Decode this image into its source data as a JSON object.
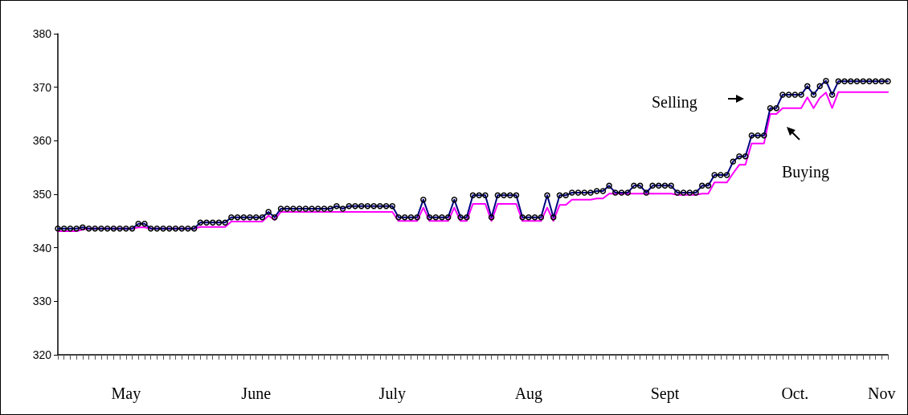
{
  "chart_data": {
    "type": "line",
    "categories": [
      null,
      null,
      null,
      null,
      null,
      null,
      null,
      null,
      null,
      null,
      null,
      "May",
      null,
      null,
      null,
      null,
      null,
      null,
      null,
      null,
      null,
      null,
      null,
      null,
      null,
      null,
      null,
      null,
      null,
      null,
      null,
      null,
      "June",
      null,
      null,
      null,
      null,
      null,
      null,
      null,
      null,
      null,
      null,
      null,
      null,
      null,
      null,
      null,
      null,
      null,
      null,
      null,
      null,
      null,
      "July",
      null,
      null,
      null,
      null,
      null,
      null,
      null,
      null,
      null,
      null,
      null,
      null,
      null,
      null,
      null,
      null,
      null,
      null,
      null,
      null,
      null,
      "Aug",
      null,
      null,
      null,
      null,
      null,
      null,
      null,
      null,
      null,
      null,
      null,
      null,
      null,
      null,
      null,
      null,
      null,
      null,
      null,
      null,
      null,
      "Sept",
      null,
      null,
      null,
      null,
      null,
      null,
      null,
      null,
      null,
      null,
      null,
      null,
      null,
      null,
      null,
      null,
      null,
      null,
      null,
      null,
      "Oct.",
      null,
      null,
      null,
      null,
      null,
      null,
      null,
      null,
      null,
      null,
      null,
      null,
      null,
      "Nov",
      null
    ],
    "series": [
      {
        "name": "Selling",
        "color": "#000080",
        "marker": "circle",
        "values": [
          343.6,
          343.6,
          343.6,
          343.6,
          343.8,
          343.6,
          343.6,
          343.6,
          343.6,
          343.6,
          343.6,
          343.6,
          343.6,
          344.5,
          344.5,
          343.6,
          343.6,
          343.6,
          343.6,
          343.6,
          343.6,
          343.6,
          343.6,
          344.7,
          344.7,
          344.7,
          344.7,
          344.7,
          345.7,
          345.7,
          345.7,
          345.7,
          345.7,
          345.7,
          346.7,
          345.7,
          347.3,
          347.3,
          347.3,
          347.3,
          347.3,
          347.3,
          347.3,
          347.3,
          347.3,
          347.8,
          347.3,
          347.8,
          347.8,
          347.8,
          347.8,
          347.8,
          347.8,
          347.8,
          347.8,
          345.7,
          345.7,
          345.7,
          345.7,
          349,
          345.7,
          345.7,
          345.7,
          345.7,
          349,
          345.7,
          345.7,
          349.8,
          349.8,
          349.8,
          345.7,
          349.8,
          349.8,
          349.8,
          349.8,
          345.7,
          345.7,
          345.7,
          345.7,
          349.8,
          345.7,
          349.8,
          349.8,
          350.3,
          350.3,
          350.3,
          350.3,
          350.6,
          350.6,
          351.6,
          350.3,
          350.3,
          350.3,
          351.6,
          351.6,
          350.3,
          351.6,
          351.6,
          351.6,
          351.6,
          350.3,
          350.3,
          350.3,
          350.3,
          351.6,
          351.6,
          353.6,
          353.6,
          353.6,
          356.1,
          357.1,
          357.1,
          361,
          361,
          361,
          366.1,
          366.1,
          368.6,
          368.6,
          368.6,
          368.6,
          370.2,
          368.6,
          370.2,
          371.2,
          368.6,
          371.1,
          371.1,
          371.1,
          371.1,
          371.1,
          371.1,
          371.1,
          371.1,
          371.1
        ]
      },
      {
        "name": "Buying",
        "color": "#ff00ff",
        "marker": "none",
        "values": [
          343.1,
          343.1,
          343.1,
          343.1,
          343.4,
          343.6,
          343.6,
          343.6,
          343.6,
          343.6,
          343.6,
          343.6,
          343.6,
          343.8,
          343.8,
          343.6,
          343.6,
          343.6,
          343.6,
          343.6,
          343.6,
          343.6,
          343.6,
          343.9,
          343.9,
          343.9,
          343.9,
          343.9,
          344.9,
          344.9,
          344.9,
          344.9,
          344.9,
          344.9,
          346,
          345.2,
          346.7,
          346.7,
          346.7,
          346.7,
          346.7,
          346.7,
          346.7,
          346.7,
          346.7,
          346.7,
          346.7,
          346.7,
          346.7,
          346.7,
          346.7,
          346.7,
          346.7,
          346.7,
          346.7,
          345,
          345,
          345,
          345,
          347.5,
          345,
          345,
          345,
          345,
          347.5,
          345,
          345,
          348.2,
          348.2,
          348.2,
          345,
          348.2,
          348.2,
          348.2,
          348.2,
          345,
          345,
          345,
          345,
          347.5,
          345,
          348,
          348,
          349,
          349,
          349,
          349,
          349.2,
          349.2,
          350.1,
          350.1,
          350.1,
          350.1,
          350.1,
          350.1,
          350.1,
          350.1,
          350.1,
          350.1,
          350.1,
          349.9,
          349.9,
          349.9,
          349.9,
          350.1,
          350.1,
          352.2,
          352.2,
          352.2,
          353.9,
          355.5,
          355.5,
          359.5,
          359.5,
          359.5,
          365,
          365,
          366.1,
          366.1,
          366.1,
          366.1,
          368.1,
          366.1,
          368,
          369,
          366.1,
          369.1,
          369.1,
          369.1,
          369.1,
          369.1,
          369.1,
          369.1,
          369.1,
          369.1
        ]
      }
    ],
    "ylim": [
      320,
      380
    ],
    "yticks": [
      320,
      330,
      340,
      350,
      360,
      370,
      380
    ],
    "grid": false,
    "legend": "top right",
    "line_style": "solid"
  }
}
